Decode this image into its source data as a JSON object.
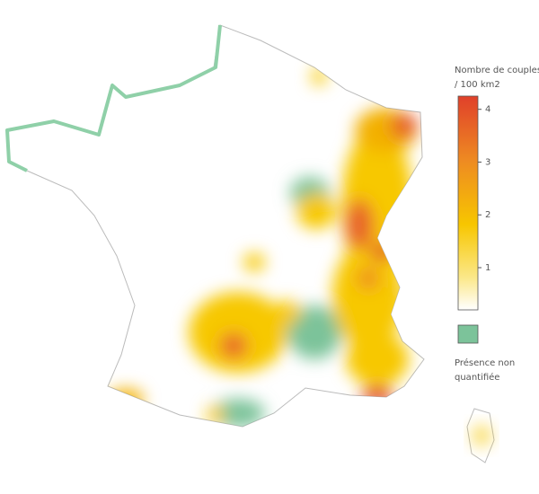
{
  "legend": {
    "title_lines": [
      "Nombre de couples",
      "/ 100 km2"
    ],
    "range": [
      0.2,
      4.25
    ],
    "ticks": [
      1,
      2,
      3,
      4
    ],
    "other_label_lines": [
      "Présence non",
      "quantifiée"
    ]
  }
}
